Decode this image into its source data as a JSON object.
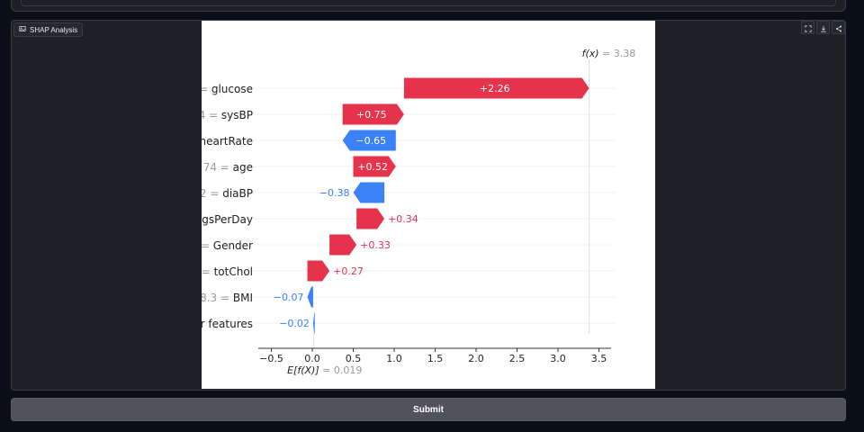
{
  "panel": {
    "label": "SHAP Analysis",
    "label_icon": "image-icon",
    "actions": [
      "fullscreen-icon",
      "download-icon",
      "share-icon"
    ]
  },
  "submit": {
    "label": "Submit"
  },
  "colors": {
    "positive": "#e5334b",
    "negative": "#3b82f6",
    "grey": "#999999"
  },
  "chart_data": {
    "type": "waterfall",
    "features": [
      {
        "label": "= glucose",
        "value": 2.26,
        "text": "+2.26"
      },
      {
        "label": "4 = sysBP",
        "value": 0.75,
        "text": "+0.75"
      },
      {
        "label": "heartRate",
        "value": -0.65,
        "text": "−0.65"
      },
      {
        "label": "74 = age",
        "value": 0.52,
        "text": "+0.52"
      },
      {
        "label": "2 = diaBP",
        "value": -0.38,
        "text": "−0.38"
      },
      {
        "label": "igsPerDay",
        "value": 0.34,
        "text": "+0.34"
      },
      {
        "label": "= Gender",
        "value": 0.33,
        "text": "+0.33"
      },
      {
        "label": "= totChol",
        "value": 0.27,
        "text": "+0.27"
      },
      {
        "label": "8.3 = BMI",
        "value": -0.07,
        "text": "−0.07"
      },
      {
        "label": "r features",
        "value": -0.02,
        "text": "−0.02"
      }
    ],
    "base_value": 0.019,
    "final_value": 3.38,
    "fx_label": "f(x)",
    "fx_value_text": "= 3.38",
    "ex_label": "E[f(X)]",
    "ex_value_text": "= 0.019",
    "xlim": [
      -0.65,
      3.62
    ],
    "ticks": [
      -0.5,
      0.0,
      0.5,
      1.0,
      1.5,
      2.0,
      2.5,
      3.0,
      3.5
    ],
    "tick_labels": [
      "−0.5",
      "0.0",
      "0.5",
      "1.0",
      "1.5",
      "2.0",
      "2.5",
      "3.0",
      "3.5"
    ]
  }
}
